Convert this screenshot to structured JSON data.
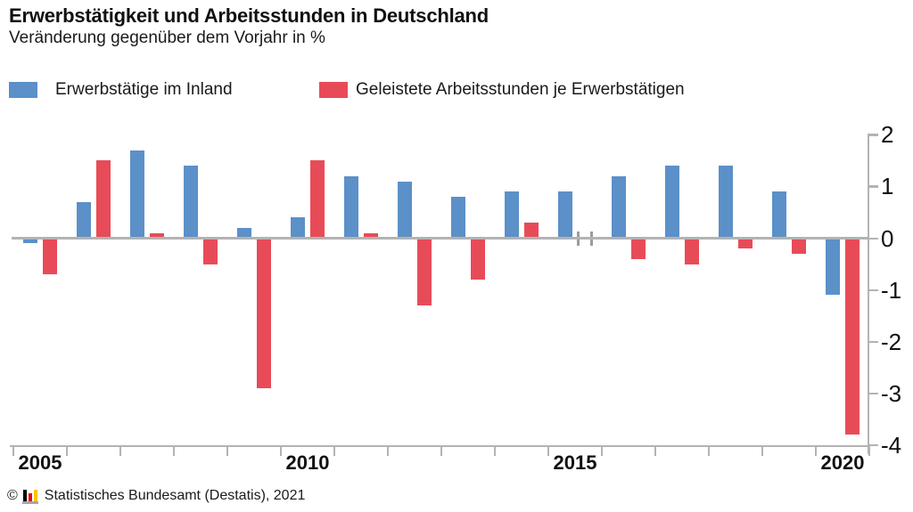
{
  "header": {
    "title": "Erwerbstätigkeit und Arbeitsstunden in Deutschland",
    "subtitle": "Veränderung gegenüber dem Vorjahr in %"
  },
  "legend": {
    "items": [
      {
        "label": "Erwerbstätige im Inland",
        "color": "#5b90c8"
      },
      {
        "label": "Geleistete Arbeitsstunden je Erwerbstätigen",
        "color": "#e84b58"
      }
    ]
  },
  "chart_data": {
    "type": "bar",
    "title": "Erwerbstätigkeit und Arbeitsstunden in Deutschland",
    "subtitle": "Veränderung gegenüber dem Vorjahr in %",
    "unit": "%",
    "categories": [
      2005,
      2006,
      2007,
      2008,
      2009,
      2010,
      2011,
      2012,
      2013,
      2014,
      2015,
      2016,
      2017,
      2018,
      2019,
      2020
    ],
    "series": [
      {
        "name": "Erwerbstätige im Inland",
        "color": "#5b90c8",
        "values": [
          -0.1,
          0.7,
          1.7,
          1.4,
          0.2,
          0.4,
          1.2,
          1.1,
          0.8,
          0.9,
          0.9,
          1.2,
          1.4,
          1.4,
          0.9,
          -1.1
        ]
      },
      {
        "name": "Geleistete Arbeitsstunden je Erwerbstätigen",
        "color": "#e84b58",
        "values": [
          -0.7,
          1.5,
          0.1,
          -0.5,
          -2.9,
          1.5,
          0.1,
          -1.3,
          -0.8,
          0.3,
          0.0,
          -0.4,
          -0.5,
          -0.2,
          -0.3,
          -3.8
        ]
      }
    ],
    "ylim": [
      -4,
      2
    ],
    "yticks": [
      2,
      1,
      0,
      -1,
      -2,
      -3,
      -4
    ],
    "xtick_label_years": [
      2005,
      2010,
      2015,
      2020
    ],
    "grid": false,
    "legend_position": "top",
    "zero_value_marker": "double-dash",
    "axis_side": "right"
  },
  "footer": {
    "copyright_symbol": "©",
    "logo_icon": "destatis-mini-bar-chart-logo",
    "source": "Statistisches Bundesamt (Destatis), 2021"
  },
  "colors": {
    "bar_blue": "#5b90c8",
    "bar_red": "#e84b58",
    "axis_gray": "#b3b3b3",
    "zero_dash_gray": "#9c9c9c",
    "text": "#1a1a1a"
  }
}
